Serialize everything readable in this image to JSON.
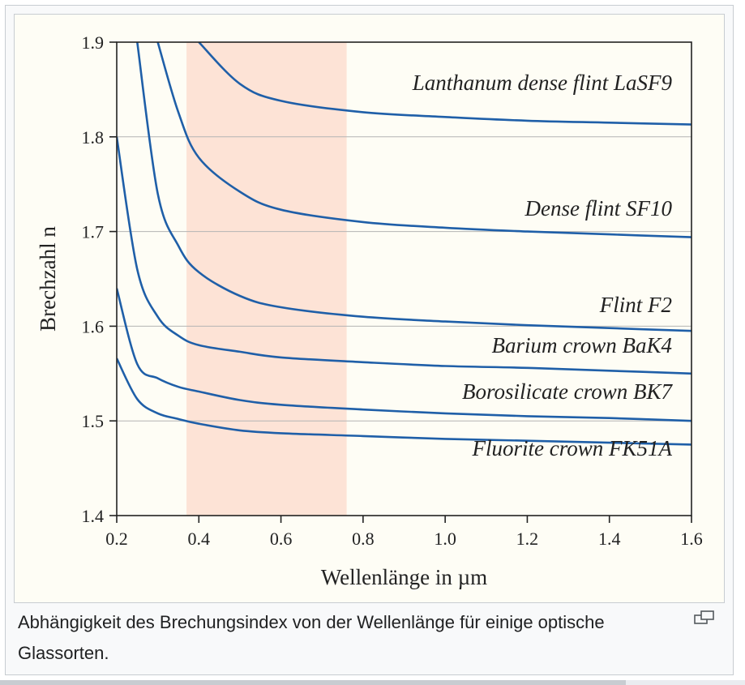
{
  "caption": "Abhängigkeit des Brechungsindex von der Wellenlänge für einige optische Glassorten.",
  "icons": {
    "enlarge": "magnify-clip-icon"
  },
  "colors": {
    "curve": "#1f5fa8",
    "visible_band": "#fde3d6",
    "plot_bg": "#fefdf5",
    "grid": "#b4b4b4"
  },
  "chart_data": {
    "type": "line",
    "xlabel": "Wellenlänge in µm",
    "ylabel": "Brechzahl n",
    "xlim": [
      0.2,
      1.6
    ],
    "ylim": [
      1.4,
      1.9
    ],
    "xticks": [
      "0.2",
      "0.4",
      "0.6",
      "0.8",
      "1.0",
      "1.2",
      "1.4",
      "1.6"
    ],
    "yticks": [
      "1.4",
      "1.5",
      "1.6",
      "1.7",
      "1.8",
      "1.9"
    ],
    "grid": "horizontal",
    "visible_band": [
      0.37,
      0.76
    ],
    "series": [
      {
        "name": "Lanthanum dense flint LaSF9",
        "x": [
          0.4,
          0.5,
          0.6,
          0.8,
          1.0,
          1.2,
          1.4,
          1.6
        ],
        "values": [
          1.9,
          1.856,
          1.838,
          1.826,
          1.821,
          1.817,
          1.815,
          1.813
        ]
      },
      {
        "name": "Dense flint SF10",
        "x": [
          0.3,
          0.35,
          0.4,
          0.5,
          0.6,
          0.8,
          1.0,
          1.2,
          1.4,
          1.6
        ],
        "values": [
          1.9,
          1.826,
          1.778,
          1.742,
          1.723,
          1.71,
          1.704,
          1.7,
          1.697,
          1.694
        ]
      },
      {
        "name": "Flint F2",
        "x": [
          0.25,
          0.3,
          0.35,
          0.4,
          0.5,
          0.6,
          0.8,
          1.0,
          1.2,
          1.4,
          1.6
        ],
        "values": [
          1.9,
          1.74,
          1.685,
          1.657,
          1.632,
          1.62,
          1.61,
          1.605,
          1.601,
          1.598,
          1.595
        ]
      },
      {
        "name": "Barium crown BaK4",
        "x": [
          0.2,
          0.25,
          0.3,
          0.35,
          0.4,
          0.5,
          0.6,
          0.8,
          1.0,
          1.2,
          1.4,
          1.6
        ],
        "values": [
          1.8,
          1.66,
          1.61,
          1.59,
          1.58,
          1.573,
          1.567,
          1.562,
          1.558,
          1.556,
          1.553,
          1.55
        ]
      },
      {
        "name": "Borosilicate crown BK7",
        "x": [
          0.2,
          0.25,
          0.3,
          0.35,
          0.4,
          0.5,
          0.6,
          0.8,
          1.0,
          1.2,
          1.4,
          1.6
        ],
        "values": [
          1.64,
          1.56,
          1.545,
          1.536,
          1.531,
          1.522,
          1.517,
          1.512,
          1.508,
          1.505,
          1.503,
          1.5
        ]
      },
      {
        "name": "Fluorite crown FK51A",
        "x": [
          0.2,
          0.25,
          0.3,
          0.35,
          0.4,
          0.5,
          0.6,
          0.8,
          1.0,
          1.2,
          1.4,
          1.6
        ],
        "values": [
          1.566,
          1.523,
          1.508,
          1.502,
          1.497,
          1.49,
          1.487,
          1.484,
          1.481,
          1.479,
          1.477,
          1.475
        ]
      }
    ]
  }
}
